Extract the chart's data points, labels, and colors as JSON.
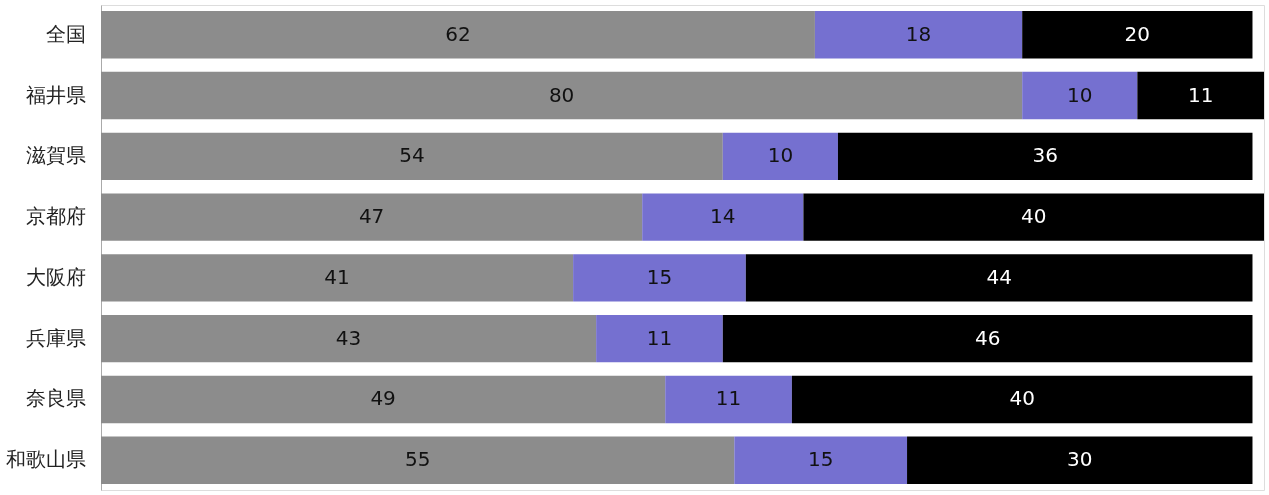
{
  "chart_data": {
    "type": "bar",
    "orientation": "horizontal",
    "stacked": true,
    "data_labels": true,
    "legend": false,
    "categories": [
      "全国",
      "福井県",
      "滋賀県",
      "京都府",
      "大阪府",
      "兵庫県",
      "奈良県",
      "和歌山県"
    ],
    "series": [
      {
        "color": "#8c8c8c",
        "values": [
          62,
          80,
          54,
          47,
          41,
          43,
          49,
          55
        ]
      },
      {
        "color": "#7570d0",
        "values": [
          18,
          10,
          10,
          14,
          15,
          11,
          11,
          15
        ]
      },
      {
        "color": "#000000",
        "values": [
          20,
          11,
          36,
          40,
          44,
          46,
          40,
          30
        ]
      }
    ]
  }
}
